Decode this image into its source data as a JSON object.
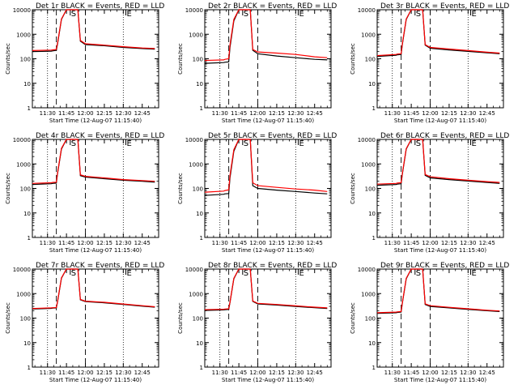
{
  "common": {
    "xlabel": "Start Time (12-Aug-07 11:15:40)",
    "ylabel": "Counts/sec",
    "x_tick_labels": [
      "11:30",
      "11:45",
      "12:00",
      "12:15",
      "12:30",
      "12:45"
    ],
    "x_tick_minutes": [
      690,
      705,
      720,
      735,
      750,
      765
    ],
    "y_tick_labels": [
      "1",
      "10",
      "100",
      "1000",
      "10000"
    ],
    "y_tick_values": [
      1,
      10,
      100,
      1000,
      10000
    ],
    "series_colors": {
      "events": "#000000",
      "lld": "#ff0000"
    },
    "marker_letters": [
      "S",
      "E"
    ]
  },
  "chart_data": [
    {
      "type": "line",
      "title": "Det 1r BLACK = Events, RED = LLD",
      "xlim_minutes": [
        678,
        778
      ],
      "ylim": [
        1,
        10000
      ],
      "yscale": "log",
      "dotted_lines_minutes": [
        690,
        750
      ],
      "dashed_lines_minutes": [
        697,
        720
      ],
      "markers": [
        {
          "letter": "S",
          "x_minutes": 708
        },
        {
          "letter": "E",
          "x_minutes": 752
        }
      ],
      "series": [
        {
          "name": "Events",
          "color": "#000000",
          "x": [
            678,
            693,
            694,
            697,
            698,
            701,
            705,
            714,
            716,
            720,
            735,
            750,
            765,
            775
          ],
          "y": [
            195,
            205,
            210,
            220,
            420,
            4000,
            10000,
            10000,
            520,
            380,
            340,
            290,
            260,
            245
          ]
        },
        {
          "name": "LLD",
          "color": "#ff0000",
          "x": [
            678,
            693,
            694,
            697,
            698,
            701,
            705,
            714,
            716,
            720,
            735,
            750,
            765,
            775
          ],
          "y": [
            215,
            225,
            230,
            240,
            460,
            4200,
            10000,
            10000,
            560,
            410,
            360,
            310,
            275,
            260
          ]
        }
      ]
    },
    {
      "type": "line",
      "title": "Det 2r BLACK = Events, RED = LLD",
      "xlim_minutes": [
        678,
        778
      ],
      "ylim": [
        1,
        10000
      ],
      "yscale": "log",
      "dotted_lines_minutes": [
        690,
        750
      ],
      "dashed_lines_minutes": [
        697,
        720
      ],
      "markers": [
        {
          "letter": "S",
          "x_minutes": 708
        },
        {
          "letter": "E",
          "x_minutes": 752
        }
      ],
      "series": [
        {
          "name": "Events",
          "color": "#000000",
          "x": [
            678,
            693,
            694,
            697,
            698,
            701,
            705,
            714,
            716,
            720,
            735,
            750,
            765,
            775
          ],
          "y": [
            65,
            70,
            72,
            75,
            300,
            3500,
            10000,
            10000,
            220,
            160,
            130,
            110,
            95,
            90
          ]
        },
        {
          "name": "LLD",
          "color": "#ff0000",
          "x": [
            678,
            693,
            694,
            697,
            698,
            701,
            705,
            714,
            716,
            720,
            735,
            750,
            765,
            775
          ],
          "y": [
            85,
            90,
            95,
            100,
            380,
            4000,
            10000,
            10000,
            240,
            190,
            170,
            150,
            120,
            110
          ]
        }
      ]
    },
    {
      "type": "line",
      "title": "Det 3r BLACK = Events, RED = LLD",
      "xlim_minutes": [
        678,
        778
      ],
      "ylim": [
        1,
        10000
      ],
      "yscale": "log",
      "dotted_lines_minutes": [
        690,
        750
      ],
      "dashed_lines_minutes": [
        697,
        720
      ],
      "markers": [
        {
          "letter": "S",
          "x_minutes": 708
        },
        {
          "letter": "E",
          "x_minutes": 752
        }
      ],
      "series": [
        {
          "name": "Events",
          "color": "#000000",
          "x": [
            678,
            693,
            694,
            697,
            698,
            701,
            705,
            714,
            716,
            720,
            735,
            750,
            765,
            775
          ],
          "y": [
            125,
            140,
            145,
            150,
            400,
            4000,
            10000,
            10000,
            360,
            270,
            230,
            200,
            175,
            160
          ]
        },
        {
          "name": "LLD",
          "color": "#ff0000",
          "x": [
            678,
            693,
            694,
            697,
            698,
            701,
            705,
            714,
            716,
            720,
            735,
            750,
            765,
            775
          ],
          "y": [
            135,
            150,
            155,
            160,
            430,
            4200,
            10000,
            10000,
            380,
            290,
            250,
            215,
            185,
            170
          ]
        }
      ]
    },
    {
      "type": "line",
      "title": "Det 4r BLACK = Events, RED = LLD",
      "xlim_minutes": [
        678,
        778
      ],
      "ylim": [
        1,
        10000
      ],
      "yscale": "log",
      "dotted_lines_minutes": [
        690,
        750
      ],
      "dashed_lines_minutes": [
        697,
        720
      ],
      "markers": [
        {
          "letter": "S",
          "x_minutes": 708
        },
        {
          "letter": "E",
          "x_minutes": 752
        }
      ],
      "series": [
        {
          "name": "Events",
          "color": "#000000",
          "x": [
            678,
            693,
            694,
            697,
            698,
            701,
            705,
            714,
            716,
            720,
            735,
            750,
            765,
            775
          ],
          "y": [
            145,
            155,
            160,
            165,
            420,
            4000,
            10000,
            10000,
            330,
            290,
            250,
            215,
            195,
            180
          ]
        },
        {
          "name": "LLD",
          "color": "#ff0000",
          "x": [
            678,
            693,
            694,
            697,
            698,
            701,
            705,
            714,
            716,
            720,
            735,
            750,
            765,
            775
          ],
          "y": [
            160,
            170,
            175,
            180,
            450,
            4300,
            10000,
            10000,
            360,
            310,
            270,
            230,
            210,
            195
          ]
        }
      ]
    },
    {
      "type": "line",
      "title": "Det 5r BLACK = Events, RED = LLD",
      "xlim_minutes": [
        678,
        778
      ],
      "ylim": [
        1,
        10000
      ],
      "yscale": "log",
      "dotted_lines_minutes": [
        690,
        750
      ],
      "dashed_lines_minutes": [
        697,
        720
      ],
      "markers": [
        {
          "letter": "S",
          "x_minutes": 708
        },
        {
          "letter": "E",
          "x_minutes": 752
        }
      ],
      "series": [
        {
          "name": "Events",
          "color": "#000000",
          "x": [
            678,
            693,
            694,
            697,
            698,
            701,
            705,
            714,
            716,
            720,
            735,
            750,
            765,
            775
          ],
          "y": [
            52,
            58,
            60,
            62,
            280,
            3300,
            10000,
            10000,
            130,
            100,
            85,
            75,
            65,
            60
          ]
        },
        {
          "name": "LLD",
          "color": "#ff0000",
          "x": [
            678,
            693,
            694,
            697,
            698,
            701,
            705,
            714,
            716,
            720,
            735,
            750,
            765,
            775
          ],
          "y": [
            70,
            78,
            82,
            88,
            350,
            3800,
            10000,
            10000,
            170,
            130,
            110,
            95,
            85,
            75
          ]
        }
      ]
    },
    {
      "type": "line",
      "title": "Det 6r BLACK = Events, RED = LLD",
      "xlim_minutes": [
        678,
        778
      ],
      "ylim": [
        1,
        10000
      ],
      "yscale": "log",
      "dotted_lines_minutes": [
        690,
        750
      ],
      "dashed_lines_minutes": [
        697,
        720
      ],
      "markers": [
        {
          "letter": "S",
          "x_minutes": 708
        },
        {
          "letter": "E",
          "x_minutes": 752
        }
      ],
      "series": [
        {
          "name": "Events",
          "color": "#000000",
          "x": [
            678,
            693,
            694,
            697,
            698,
            701,
            705,
            714,
            716,
            720,
            735,
            750,
            765,
            775
          ],
          "y": [
            135,
            145,
            150,
            155,
            400,
            4000,
            10000,
            10000,
            340,
            270,
            230,
            200,
            175,
            160
          ]
        },
        {
          "name": "LLD",
          "color": "#ff0000",
          "x": [
            678,
            693,
            694,
            697,
            698,
            701,
            705,
            714,
            716,
            720,
            735,
            750,
            765,
            775
          ],
          "y": [
            150,
            160,
            165,
            170,
            430,
            4200,
            10000,
            10000,
            370,
            300,
            250,
            215,
            190,
            175
          ]
        }
      ]
    },
    {
      "type": "line",
      "title": "Det 7r BLACK = Events, RED = LLD",
      "xlim_minutes": [
        678,
        778
      ],
      "ylim": [
        1,
        10000
      ],
      "yscale": "log",
      "dotted_lines_minutes": [
        690,
        750
      ],
      "dashed_lines_minutes": [
        697,
        720
      ],
      "markers": [
        {
          "letter": "S",
          "x_minutes": 708
        },
        {
          "letter": "E",
          "x_minutes": 752
        }
      ],
      "series": [
        {
          "name": "Events",
          "color": "#000000",
          "x": [
            678,
            693,
            694,
            697,
            698,
            701,
            705,
            714,
            716,
            720,
            735,
            750,
            765,
            775
          ],
          "y": [
            235,
            250,
            255,
            260,
            480,
            4200,
            10000,
            10000,
            560,
            470,
            420,
            360,
            305,
            280
          ]
        },
        {
          "name": "LLD",
          "color": "#ff0000",
          "x": [
            678,
            693,
            694,
            697,
            698,
            701,
            705,
            714,
            716,
            720,
            735,
            750,
            765,
            775
          ],
          "y": [
            245,
            260,
            265,
            270,
            500,
            4400,
            10000,
            10000,
            580,
            490,
            440,
            375,
            320,
            290
          ]
        }
      ]
    },
    {
      "type": "line",
      "title": "Det 8r BLACK = Events, RED = LLD",
      "xlim_minutes": [
        678,
        778
      ],
      "ylim": [
        1,
        10000
      ],
      "yscale": "log",
      "dotted_lines_minutes": [
        690,
        750
      ],
      "dashed_lines_minutes": [
        697,
        720
      ],
      "markers": [
        {
          "letter": "S",
          "x_minutes": 708
        },
        {
          "letter": "E",
          "x_minutes": 752
        }
      ],
      "series": [
        {
          "name": "Events",
          "color": "#000000",
          "x": [
            678,
            693,
            694,
            697,
            698,
            701,
            705,
            714,
            716,
            720,
            735,
            750,
            765,
            775
          ],
          "y": [
            205,
            215,
            220,
            225,
            440,
            4000,
            10000,
            10000,
            480,
            380,
            340,
            300,
            265,
            245
          ]
        },
        {
          "name": "LLD",
          "color": "#ff0000",
          "x": [
            678,
            693,
            694,
            697,
            698,
            701,
            705,
            714,
            716,
            720,
            735,
            750,
            765,
            775
          ],
          "y": [
            220,
            230,
            235,
            240,
            460,
            4200,
            10000,
            10000,
            500,
            400,
            360,
            315,
            280,
            260
          ]
        }
      ]
    },
    {
      "type": "line",
      "title": "Det 9r BLACK = Events, RED = LLD",
      "xlim_minutes": [
        678,
        778
      ],
      "ylim": [
        1,
        10000
      ],
      "yscale": "log",
      "dotted_lines_minutes": [
        690,
        750
      ],
      "dashed_lines_minutes": [
        697,
        720
      ],
      "markers": [
        {
          "letter": "S",
          "x_minutes": 708
        },
        {
          "letter": "E",
          "x_minutes": 752
        }
      ],
      "series": [
        {
          "name": "Events",
          "color": "#000000",
          "x": [
            678,
            693,
            694,
            697,
            698,
            701,
            705,
            714,
            716,
            720,
            735,
            750,
            765,
            775
          ],
          "y": [
            155,
            165,
            170,
            175,
            420,
            4000,
            10000,
            10000,
            360,
            300,
            260,
            225,
            200,
            185
          ]
        },
        {
          "name": "LLD",
          "color": "#ff0000",
          "x": [
            678,
            693,
            694,
            697,
            698,
            701,
            705,
            714,
            716,
            720,
            735,
            750,
            765,
            775
          ],
          "y": [
            165,
            175,
            180,
            185,
            440,
            4200,
            10000,
            10000,
            380,
            320,
            275,
            240,
            210,
            195
          ]
        }
      ]
    }
  ]
}
